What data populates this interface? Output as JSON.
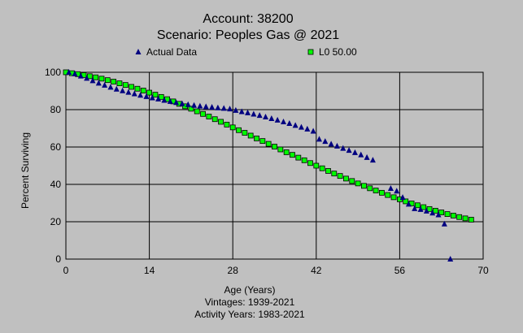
{
  "chart_data": {
    "type": "scatter",
    "title": "Account: 38200",
    "subtitle": "Scenario: Peoples Gas @ 2021",
    "xlabel": "Age (Years)",
    "ylabel": "Percent Surviving",
    "footer": [
      "Vintages: 1939-2021",
      "Activity Years: 1983-2021"
    ],
    "xlim": [
      0,
      70
    ],
    "ylim": [
      0,
      100
    ],
    "xticks": [
      0,
      14,
      28,
      42,
      56,
      70
    ],
    "yticks": [
      0,
      20,
      40,
      60,
      80,
      100
    ],
    "grid": true,
    "legend_position": "top",
    "colors": {
      "background": "#c0c0c0",
      "actual": "#000080",
      "curve": "#00ff00"
    },
    "series": [
      {
        "name": "Actual Data",
        "marker": "triangle",
        "x": [
          0.5,
          1.5,
          2.5,
          3.5,
          4.5,
          5.5,
          6.5,
          7.5,
          8.5,
          9.5,
          10.5,
          11.5,
          12.5,
          13.5,
          14.5,
          15.5,
          16.5,
          17.5,
          18.5,
          19.5,
          20.5,
          21.5,
          22.5,
          23.5,
          24.5,
          25.5,
          26.5,
          27.5,
          28.5,
          29.5,
          30.5,
          31.5,
          32.5,
          33.5,
          34.5,
          35.5,
          36.5,
          37.5,
          38.5,
          39.5,
          40.5,
          41.5,
          42.5,
          43.5,
          44.5,
          45.5,
          46.5,
          47.5,
          48.5,
          49.5,
          50.5,
          51.5,
          52.5,
          53.5,
          54.5,
          55.5,
          56.5,
          57.5,
          58.5,
          59.5,
          60.5,
          61.5,
          62.5,
          63.5,
          64.5
        ],
        "y": [
          100,
          99.2,
          98,
          96.8,
          95.5,
          94.2,
          93.1,
          92,
          91,
          90.1,
          89.3,
          88.5,
          87.7,
          87,
          86.3,
          85.7,
          85,
          84.4,
          83.8,
          83.2,
          82.7,
          82.3,
          81.9,
          81.6,
          81.3,
          81,
          80.7,
          80.4,
          79.6,
          78.9,
          78.3,
          77.6,
          76.9,
          76.1,
          75.2,
          74.4,
          73.5,
          72.6,
          71.6,
          70.6,
          69.6,
          68.5,
          64.2,
          63,
          61.6,
          60.5,
          59.3,
          58.2,
          57,
          55.8,
          54.4,
          53,
          null,
          null,
          37.8,
          36.4,
          33,
          29.4,
          27,
          26.6,
          25.7,
          24.7,
          23.7,
          18.8,
          0
        ]
      },
      {
        "name": "L0 50.00",
        "marker": "square",
        "x": [
          0,
          1,
          2,
          3,
          4,
          5,
          6,
          7,
          8,
          9,
          10,
          11,
          12,
          13,
          14,
          15,
          16,
          17,
          18,
          19,
          20,
          21,
          22,
          23,
          24,
          25,
          26,
          27,
          28,
          29,
          30,
          31,
          32,
          33,
          34,
          35,
          36,
          37,
          38,
          39,
          40,
          41,
          42,
          43,
          44,
          45,
          46,
          47,
          48,
          49,
          50,
          51,
          52,
          53,
          54,
          55,
          56,
          57,
          58,
          59,
          60,
          61,
          62,
          63,
          64,
          65,
          66,
          67,
          68
        ],
        "y": [
          100,
          99.5,
          99,
          98.5,
          97.9,
          97.3,
          96.6,
          95.8,
          95,
          94.1,
          93.2,
          92.2,
          91.2,
          90.2,
          89.1,
          88,
          86.8,
          85.6,
          84.4,
          83.1,
          81.8,
          80.5,
          79.1,
          77.7,
          76.3,
          74.9,
          73.5,
          72,
          70.5,
          69,
          67.6,
          66.1,
          64.6,
          63.2,
          61.7,
          60.2,
          58.7,
          57.2,
          55.8,
          54.3,
          52.9,
          51.4,
          50,
          48.6,
          47.2,
          45.8,
          44.5,
          43.1,
          41.8,
          40.5,
          39.2,
          37.9,
          36.7,
          35.5,
          34.3,
          33.1,
          32,
          30.9,
          29.8,
          28.8,
          27.8,
          26.8,
          25.9,
          25,
          24.1,
          23.3,
          22.5,
          21.8,
          21.1
        ]
      }
    ]
  }
}
